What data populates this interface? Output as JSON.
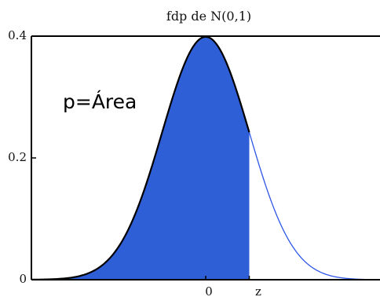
{
  "chart_data": {
    "type": "area",
    "title": "fdp de N(0,1)",
    "xlabel": "",
    "ylabel": "",
    "xlim": [
      -4,
      4
    ],
    "ylim": [
      0,
      0.4
    ],
    "y_ticks": [
      {
        "value": 0,
        "label": "0"
      },
      {
        "value": 0.2,
        "label": "0.2"
      },
      {
        "value": 0.4,
        "label": "0.4"
      }
    ],
    "x_ticks": [
      {
        "value": 0,
        "label": "0"
      },
      {
        "value": 1.0,
        "label": "z"
      }
    ],
    "series": [
      {
        "function": "standard normal pdf",
        "mean": 0,
        "std": 1,
        "shaded_from": -4,
        "shaded_to": 1.0
      }
    ],
    "annotation": "p=Área",
    "grid": false,
    "colors": {
      "fill": "#2f5fd6",
      "curve": "#000000",
      "tail_curve": "#2d55e6",
      "axes": "#000000",
      "background": "#ffffff"
    }
  }
}
